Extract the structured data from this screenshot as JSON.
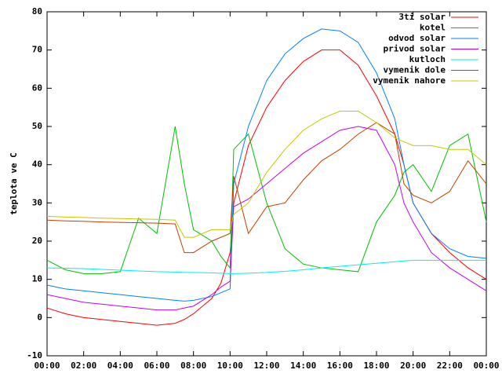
{
  "chart_data": {
    "type": "line",
    "ylabel": "teplota ve C",
    "x": [
      0,
      1,
      2,
      3,
      4,
      5,
      6,
      7,
      7.5,
      8,
      9,
      9.5,
      10,
      10.2,
      11,
      12,
      13,
      14,
      15,
      16,
      17,
      18,
      19,
      19.5,
      20,
      21,
      22,
      23,
      24
    ],
    "xlim": [
      0,
      24
    ],
    "xticks": [
      {
        "value": 0,
        "label": "00:00"
      },
      {
        "value": 2,
        "label": "02:00"
      },
      {
        "value": 4,
        "label": "04:00"
      },
      {
        "value": 6,
        "label": "06:00"
      },
      {
        "value": 8,
        "label": "08:00"
      },
      {
        "value": 10,
        "label": "10:00"
      },
      {
        "value": 12,
        "label": "12:00"
      },
      {
        "value": 14,
        "label": "14:00"
      },
      {
        "value": 16,
        "label": "16:00"
      },
      {
        "value": 18,
        "label": "18:00"
      },
      {
        "value": 20,
        "label": "20:00"
      },
      {
        "value": 22,
        "label": "22:00"
      },
      {
        "value": 24,
        "label": "00:00"
      }
    ],
    "ylim": [
      -10,
      80
    ],
    "yticks": [
      -10,
      0,
      10,
      20,
      30,
      40,
      50,
      60,
      70,
      80
    ],
    "legend": "top-right",
    "series": [
      {
        "name": "3ti solar",
        "color": "#ff0000",
        "values": [
          2.5,
          1,
          0,
          -0.5,
          -1,
          -1.5,
          -2,
          -1.5,
          -0.5,
          1,
          5,
          9,
          17,
          30,
          45,
          55,
          62,
          67,
          70,
          70,
          66,
          58,
          48,
          40,
          30,
          22,
          17,
          13,
          10
        ]
      },
      {
        "name": "kotel",
        "color": "#00c000",
        "values": [
          15,
          12.5,
          11.5,
          11.5,
          12,
          26,
          22,
          50,
          35,
          23,
          20,
          16,
          13,
          44,
          48,
          30,
          18,
          14,
          13,
          12.5,
          12,
          25,
          32,
          38,
          40,
          33,
          45,
          48,
          25
        ]
      },
      {
        "name": "odvod solar",
        "color": "#0080ff",
        "values": [
          8.5,
          7.5,
          7,
          6.5,
          6,
          5.5,
          5,
          4.5,
          4.3,
          4.5,
          5.5,
          6.5,
          7.5,
          35,
          50,
          62,
          69,
          73,
          75.5,
          75,
          72,
          64,
          52,
          40,
          30,
          22,
          18,
          16,
          15.5
        ]
      },
      {
        "name": "privod solar",
        "color": "#c000ff",
        "values": [
          6,
          5,
          4,
          3.5,
          3,
          2.5,
          2,
          2,
          2.5,
          3,
          6,
          8,
          9.5,
          29,
          31,
          35,
          39,
          43,
          46,
          49,
          50,
          49,
          40,
          30,
          25,
          17,
          13,
          10,
          7
        ]
      },
      {
        "name": "kutloch",
        "color": "#00eeee",
        "values": [
          13,
          12.9,
          12.8,
          12.6,
          12.4,
          12.2,
          12,
          11.9,
          11.8,
          11.8,
          11.7,
          11.6,
          11.5,
          11.5,
          11.6,
          11.8,
          12.1,
          12.5,
          13,
          13.4,
          13.8,
          14.2,
          14.6,
          14.8,
          15,
          15,
          15,
          15,
          15
        ]
      },
      {
        "name": "vymenik dole",
        "color": "#c04000",
        "values": [
          25.5,
          25.3,
          25.2,
          25,
          24.9,
          24.8,
          24.7,
          24.5,
          17,
          17,
          20,
          21,
          22,
          37,
          22,
          29,
          30,
          36,
          41,
          44,
          48,
          51,
          48,
          35,
          32,
          30,
          33,
          41,
          35
        ]
      },
      {
        "name": "vymenik nahore",
        "color": "#c8c800",
        "values": [
          26.5,
          26.3,
          26.2,
          26,
          25.9,
          25.8,
          25.7,
          25.5,
          21,
          21,
          23,
          23,
          23,
          27,
          30,
          38,
          44,
          49,
          52,
          54,
          54,
          51,
          47,
          46,
          45,
          45,
          44,
          44,
          40
        ]
      }
    ]
  }
}
